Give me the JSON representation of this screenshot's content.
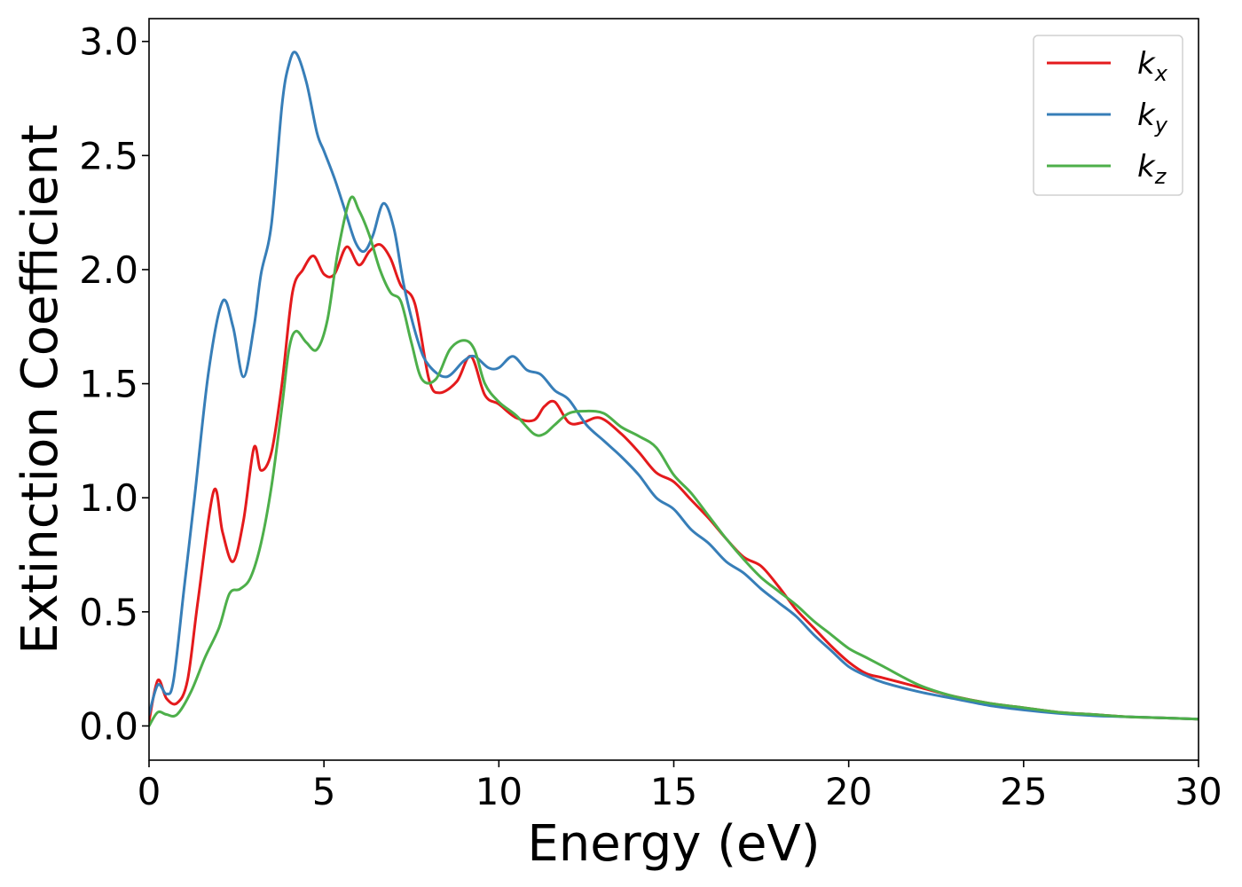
{
  "chart_data": {
    "type": "line",
    "title": "",
    "xlabel": "Energy (eV)",
    "ylabel": "Extinction Coefficient",
    "xlim": [
      0,
      30
    ],
    "ylim": [
      -0.15,
      3.1
    ],
    "xticks": [
      0,
      5,
      10,
      15,
      20,
      25,
      30
    ],
    "xtick_labels": [
      "0",
      "5",
      "10",
      "15",
      "20",
      "25",
      "30"
    ],
    "yticks": [
      0.0,
      0.5,
      1.0,
      1.5,
      2.0,
      2.5,
      3.0
    ],
    "ytick_labels": [
      "0.0",
      "0.5",
      "1.0",
      "1.5",
      "2.0",
      "2.5",
      "3.0"
    ],
    "grid": false,
    "legend_position": "top-right",
    "series": [
      {
        "name": "k",
        "subscript": "x",
        "color": "#e41a1c",
        "x": [
          0,
          0.25,
          0.5,
          0.8,
          1.1,
          1.4,
          1.85,
          2.1,
          2.4,
          2.7,
          3.0,
          3.2,
          3.5,
          3.8,
          4.1,
          4.4,
          4.7,
          5.0,
          5.3,
          5.65,
          6.0,
          6.3,
          6.6,
          6.9,
          7.2,
          7.6,
          8.0,
          8.3,
          8.8,
          9.2,
          9.6,
          10.0,
          10.5,
          11.0,
          11.3,
          11.6,
          12.0,
          12.4,
          12.9,
          13.5,
          14.0,
          14.5,
          15.0,
          15.5,
          16.0,
          16.5,
          17.0,
          17.5,
          18.0,
          18.5,
          19.0,
          19.5,
          20.0,
          20.5,
          21.0,
          22.0,
          23.0,
          24.0,
          25.0,
          26.0,
          27.0,
          28.0,
          29.0,
          30.0
        ],
        "y": [
          0.02,
          0.2,
          0.12,
          0.1,
          0.2,
          0.55,
          1.03,
          0.85,
          0.72,
          0.9,
          1.22,
          1.12,
          1.2,
          1.5,
          1.9,
          2.0,
          2.06,
          1.98,
          1.98,
          2.1,
          2.02,
          2.08,
          2.11,
          2.05,
          1.93,
          1.85,
          1.52,
          1.46,
          1.51,
          1.62,
          1.45,
          1.41,
          1.35,
          1.34,
          1.4,
          1.42,
          1.33,
          1.33,
          1.35,
          1.28,
          1.2,
          1.11,
          1.07,
          0.99,
          0.91,
          0.82,
          0.74,
          0.7,
          0.61,
          0.51,
          0.43,
          0.35,
          0.28,
          0.23,
          0.21,
          0.17,
          0.13,
          0.1,
          0.08,
          0.06,
          0.05,
          0.04,
          0.035,
          0.03
        ]
      },
      {
        "name": "k",
        "subscript": "y",
        "color": "#377eb8",
        "x": [
          0,
          0.25,
          0.5,
          0.7,
          1.0,
          1.3,
          1.7,
          2.1,
          2.4,
          2.7,
          3.0,
          3.2,
          3.5,
          3.8,
          4.0,
          4.2,
          4.5,
          4.8,
          5.0,
          5.3,
          5.6,
          5.9,
          6.15,
          6.4,
          6.7,
          7.0,
          7.3,
          7.7,
          8.0,
          8.5,
          9.0,
          9.3,
          9.7,
          10.0,
          10.4,
          10.8,
          11.2,
          11.6,
          12.0,
          12.5,
          13.0,
          13.5,
          14.0,
          14.5,
          15.0,
          15.5,
          16.0,
          16.5,
          17.0,
          17.5,
          18.0,
          18.5,
          19.0,
          19.5,
          20.0,
          20.5,
          21.0,
          22.0,
          23.0,
          24.0,
          25.0,
          26.0,
          27.0,
          28.0,
          29.0,
          30.0
        ],
        "y": [
          0.05,
          0.18,
          0.14,
          0.2,
          0.6,
          1.0,
          1.55,
          1.86,
          1.75,
          1.53,
          1.75,
          1.98,
          2.2,
          2.72,
          2.9,
          2.95,
          2.82,
          2.6,
          2.52,
          2.4,
          2.26,
          2.12,
          2.08,
          2.15,
          2.29,
          2.18,
          1.92,
          1.68,
          1.58,
          1.53,
          1.6,
          1.62,
          1.57,
          1.57,
          1.62,
          1.56,
          1.54,
          1.47,
          1.43,
          1.32,
          1.25,
          1.18,
          1.1,
          1.0,
          0.95,
          0.86,
          0.8,
          0.72,
          0.67,
          0.6,
          0.54,
          0.48,
          0.4,
          0.33,
          0.26,
          0.22,
          0.19,
          0.15,
          0.12,
          0.09,
          0.07,
          0.055,
          0.045,
          0.04,
          0.035,
          0.03
        ]
      },
      {
        "name": "k",
        "subscript": "z",
        "color": "#4daf4a",
        "x": [
          0,
          0.25,
          0.5,
          0.8,
          1.2,
          1.6,
          2.0,
          2.3,
          2.6,
          2.9,
          3.2,
          3.5,
          3.8,
          4.0,
          4.2,
          4.5,
          4.8,
          5.1,
          5.4,
          5.75,
          6.0,
          6.3,
          6.6,
          6.9,
          7.2,
          7.5,
          7.8,
          8.2,
          8.6,
          9.0,
          9.3,
          9.6,
          10.0,
          10.5,
          11.0,
          11.3,
          11.6,
          12.0,
          12.5,
          13.0,
          13.5,
          14.0,
          14.5,
          15.0,
          15.5,
          16.0,
          16.5,
          17.0,
          17.5,
          18.0,
          18.5,
          19.0,
          19.5,
          20.0,
          20.5,
          21.0,
          22.0,
          23.0,
          24.0,
          25.0,
          26.0,
          27.0,
          28.0,
          29.0,
          30.0
        ],
        "y": [
          0.0,
          0.06,
          0.05,
          0.05,
          0.15,
          0.3,
          0.43,
          0.58,
          0.6,
          0.65,
          0.8,
          1.05,
          1.4,
          1.65,
          1.73,
          1.68,
          1.65,
          1.78,
          2.08,
          2.31,
          2.26,
          2.15,
          2.0,
          1.9,
          1.86,
          1.68,
          1.52,
          1.52,
          1.65,
          1.69,
          1.65,
          1.5,
          1.42,
          1.36,
          1.28,
          1.28,
          1.32,
          1.37,
          1.38,
          1.37,
          1.31,
          1.27,
          1.22,
          1.1,
          1.02,
          0.92,
          0.82,
          0.73,
          0.65,
          0.59,
          0.53,
          0.46,
          0.4,
          0.34,
          0.3,
          0.26,
          0.18,
          0.13,
          0.1,
          0.08,
          0.06,
          0.05,
          0.04,
          0.035,
          0.03
        ]
      }
    ]
  }
}
